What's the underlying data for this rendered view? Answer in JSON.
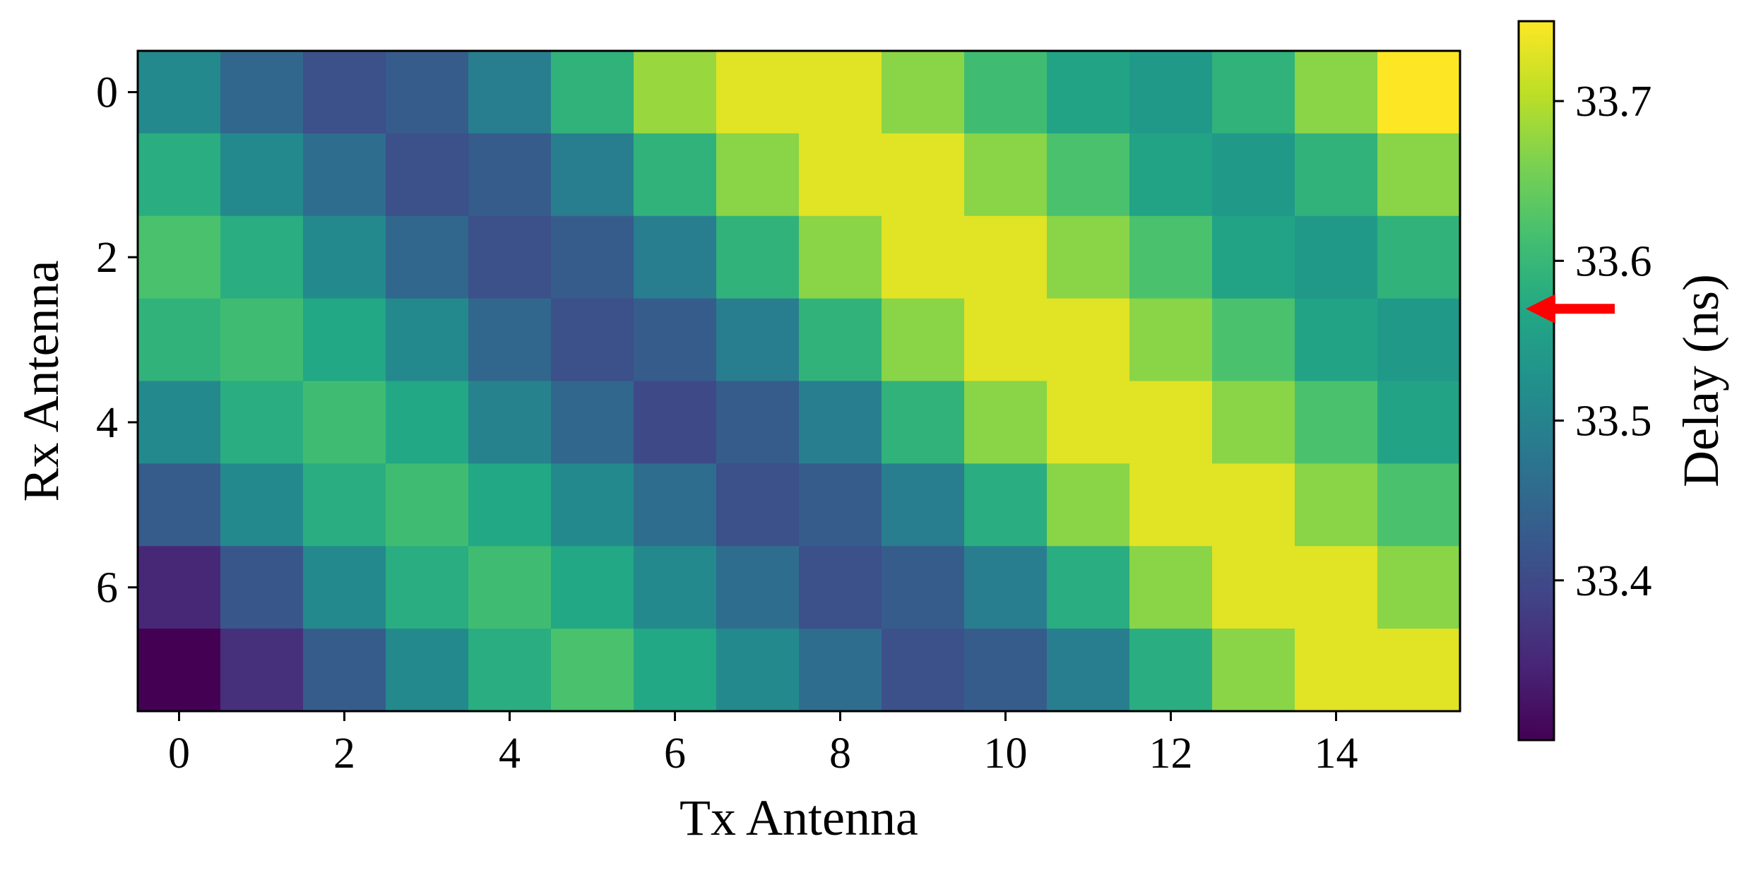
{
  "chart_data": {
    "type": "heatmap",
    "title": "",
    "xlabel": "Tx Antenna",
    "ylabel": "Rx Antenna",
    "colorbar_label": "Delay (ns)",
    "colormap": "viridis",
    "vmin": 33.3,
    "vmax": 33.75,
    "x_ticks": [
      0,
      2,
      4,
      6,
      8,
      10,
      12,
      14
    ],
    "y_ticks": [
      0,
      2,
      4,
      6
    ],
    "x_tick_labels": [
      "0",
      "2",
      "4",
      "6",
      "8",
      "10",
      "12",
      "14"
    ],
    "y_tick_labels": [
      "0",
      "2",
      "4",
      "6"
    ],
    "colorbar_ticks": [
      33.4,
      33.5,
      33.6,
      33.7
    ],
    "colorbar_tick_labels": [
      "33.4",
      "33.5",
      "33.6",
      "33.7"
    ],
    "grid": false,
    "annotation": {
      "type": "arrow",
      "color": "#ff0000",
      "points_to_value": 33.57,
      "side": "right-of-colorbar"
    },
    "values": [
      [
        33.51,
        33.45,
        33.41,
        33.43,
        33.49,
        33.59,
        33.68,
        33.73,
        33.73,
        33.67,
        33.61,
        33.56,
        33.54,
        33.59,
        33.67,
        33.75
      ],
      [
        33.58,
        33.51,
        33.46,
        33.41,
        33.43,
        33.49,
        33.59,
        33.67,
        33.73,
        33.73,
        33.67,
        33.62,
        33.56,
        33.54,
        33.59,
        33.67
      ],
      [
        33.62,
        33.58,
        33.51,
        33.45,
        33.41,
        33.43,
        33.49,
        33.59,
        33.67,
        33.73,
        33.73,
        33.67,
        33.62,
        33.56,
        33.54,
        33.59
      ],
      [
        33.59,
        33.61,
        33.57,
        33.51,
        33.45,
        33.41,
        33.43,
        33.49,
        33.59,
        33.67,
        33.73,
        33.73,
        33.67,
        33.62,
        33.56,
        33.54
      ],
      [
        33.51,
        33.58,
        33.61,
        33.57,
        33.5,
        33.45,
        33.4,
        33.43,
        33.49,
        33.59,
        33.67,
        33.73,
        33.73,
        33.67,
        33.62,
        33.56
      ],
      [
        33.43,
        33.51,
        33.58,
        33.61,
        33.57,
        33.51,
        33.46,
        33.41,
        33.43,
        33.49,
        33.58,
        33.67,
        33.73,
        33.73,
        33.67,
        33.62
      ],
      [
        33.35,
        33.42,
        33.51,
        33.58,
        33.61,
        33.57,
        33.51,
        33.46,
        33.41,
        33.43,
        33.49,
        33.58,
        33.67,
        33.73,
        33.73,
        33.67
      ],
      [
        33.3,
        33.36,
        33.43,
        33.51,
        33.58,
        33.62,
        33.57,
        33.51,
        33.46,
        33.41,
        33.43,
        33.49,
        33.58,
        33.67,
        33.73,
        33.73
      ]
    ]
  }
}
